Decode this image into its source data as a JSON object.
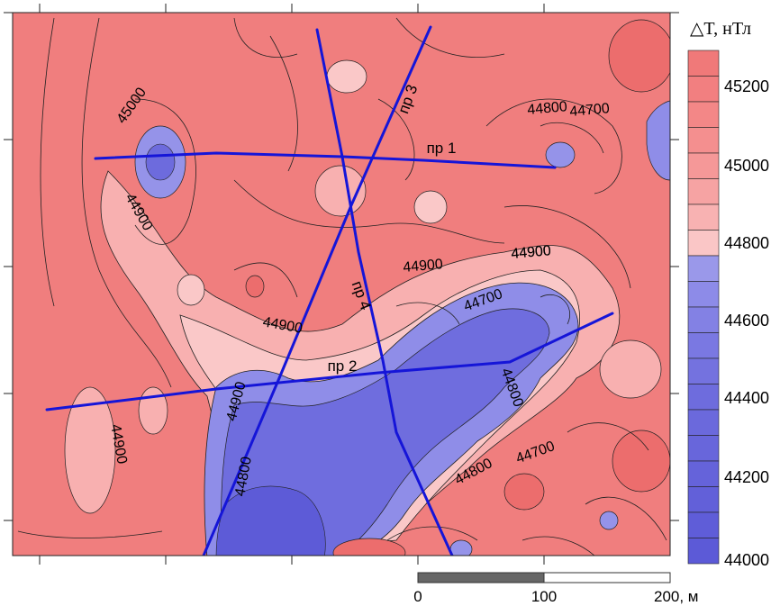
{
  "legend": {
    "title": "△T, нТл",
    "ticks": [
      "45200",
      "45000",
      "44800",
      "44600",
      "44400",
      "44200",
      "44000"
    ],
    "colors": [
      "#f07979",
      "#f27f80",
      "#f38787",
      "#f48f8f",
      "#f59898",
      "#f6a3a3",
      "#f8b2b2",
      "#fac6c6",
      "#9a98ea",
      "#8d8be8",
      "#8381e4",
      "#7a78e2",
      "#7472df",
      "#6e6cdd",
      "#6b69dc",
      "#6866db",
      "#6563da",
      "#6260d9",
      "#5f5dd8",
      "#5c5ad7"
    ]
  },
  "contours": [
    "45000",
    "44900",
    "44900",
    "44900",
    "44900",
    "44800",
    "44700",
    "44800",
    "44700",
    "44900",
    "44800",
    "44700",
    "44800",
    "44900",
    "44900"
  ],
  "profiles": [
    "пр 1",
    "пр 2",
    "пр 3",
    "пр 4"
  ],
  "scale_bar": {
    "labels": [
      "0",
      "100",
      "200, м"
    ]
  }
}
